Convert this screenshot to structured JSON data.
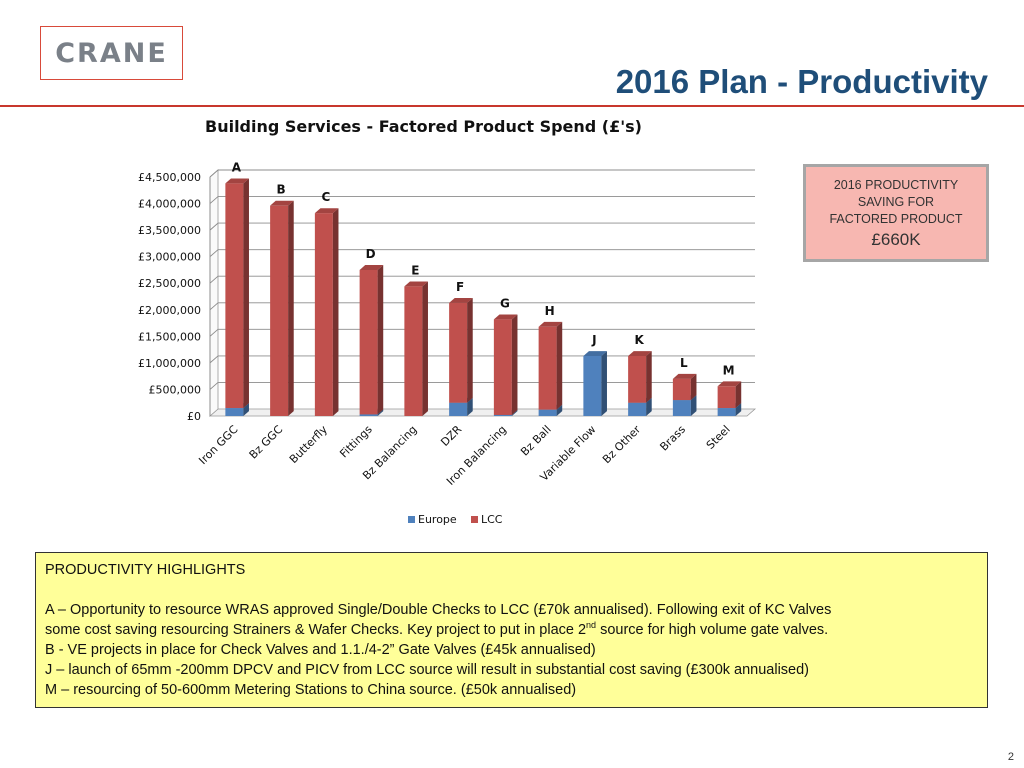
{
  "logo": {
    "text": "CRANE"
  },
  "page_title": "2016 Plan - Productivity",
  "saving_box": {
    "line1": "2016 PRODUCTIVITY",
    "line2": "SAVING FOR",
    "line3": "FACTORED PRODUCT",
    "amount": "£660K"
  },
  "highlights": {
    "heading": "PRODUCTIVITY HIGHLIGHTS",
    "a_line1": "A – Opportunity to resource WRAS approved Single/Double Checks to LCC (£70k annualised). Following exit of KC Valves",
    "a_line2_pre": "some cost saving resourcing Strainers & Wafer Checks. Key project to put in place 2",
    "a_line2_sup": "nd",
    "a_line2_post": " source for high volume gate valves.",
    "b": "B -  VE projects in place for Check Valves and 1.1./4-2” Gate Valves (£45k annualised)",
    "j": "J – launch of 65mm -200mm DPCV and PICV from LCC source will result in substantial cost saving (£300k annualised)",
    "m": "M – resourcing of 50-600mm Metering Stations to China source. (£50k annualised)"
  },
  "page_number": "2",
  "chart_data": {
    "type": "bar",
    "stacked": true,
    "title": "Building Services - Factored Product Spend (£'s)",
    "categories": [
      "Iron GGC",
      "Bz GGC",
      "Butterfly",
      "Fittings",
      "Bz Balancing",
      "DZR",
      "Iron Balancing",
      "Bz Ball",
      "Variable Flow",
      "Bz Other",
      "Brass",
      "Steel"
    ],
    "bar_labels": [
      "A",
      "B",
      "C",
      "D",
      "E",
      "F",
      "G",
      "H",
      "J",
      "K",
      "L",
      "M"
    ],
    "series": [
      {
        "name": "Europe",
        "color": "#4f81bd",
        "values": [
          150000,
          0,
          0,
          30000,
          0,
          250000,
          20000,
          120000,
          1130000,
          250000,
          300000,
          150000
        ]
      },
      {
        "name": "LCC",
        "color": "#c0504d",
        "values": [
          4230000,
          3960000,
          3820000,
          2720000,
          2440000,
          1880000,
          1800000,
          1560000,
          0,
          880000,
          400000,
          410000
        ]
      }
    ],
    "ytick_labels": [
      "£0",
      "£500,000",
      "£1,000,000",
      "£1,500,000",
      "£2,000,000",
      "£2,500,000",
      "£3,000,000",
      "£3,500,000",
      "£4,000,000",
      "£4,500,000"
    ],
    "ylim": [
      0,
      4500000
    ],
    "ystep": 500000,
    "legend": "bottom",
    "grid": true
  }
}
